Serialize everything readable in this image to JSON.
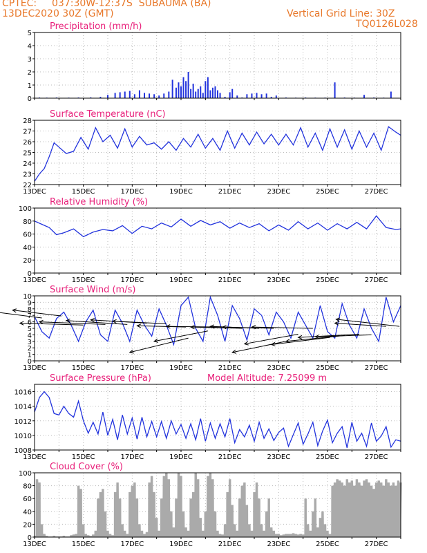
{
  "header": {
    "source": "CPTEC:",
    "location": "037:30W-12:37S  SUBAUMA (BA)",
    "run": "13DEC2020 30Z (GMT)",
    "grid_note": "Vertical Grid Line: 30Z",
    "code": "TQ0126L028"
  },
  "colors": {
    "header": "#e8782a",
    "title": "#e8207a",
    "line": "#2233dd",
    "cloud": "#aaaaaa",
    "grid": "#bbbbbb"
  },
  "x_ticks": [
    "13DEC",
    "15DEC",
    "17DEC",
    "19DEC",
    "21DEC",
    "23DEC",
    "25DEC",
    "27DEC"
  ],
  "chart_data": [
    {
      "id": "precip",
      "type": "bar",
      "title": "Precipitation (mm/h)",
      "xlim": [
        13.0,
        28.0
      ],
      "ylim": [
        0,
        5
      ],
      "yticks": [
        0,
        1,
        2,
        3,
        4,
        5
      ],
      "show_xlabels": false,
      "x": [
        13.2,
        13.5,
        13.9,
        14.4,
        14.8,
        15.3,
        15.7,
        16.0,
        16.3,
        16.5,
        16.7,
        16.9,
        17.1,
        17.3,
        17.5,
        17.7,
        17.9,
        18.1,
        18.3,
        18.5,
        18.65,
        18.8,
        18.9,
        19.0,
        19.1,
        19.2,
        19.3,
        19.4,
        19.5,
        19.6,
        19.7,
        19.8,
        19.9,
        20.0,
        20.1,
        20.2,
        20.3,
        20.4,
        20.5,
        20.6,
        20.8,
        21.0,
        21.1,
        21.3,
        21.5,
        21.7,
        21.9,
        22.1,
        22.3,
        22.5,
        22.7,
        22.9,
        23.3,
        23.7,
        24.1,
        24.5,
        24.9,
        25.3,
        25.7,
        26.1,
        26.5,
        26.9,
        27.3,
        27.6
      ],
      "values": [
        0.05,
        0.04,
        0.05,
        0.04,
        0.05,
        0.06,
        0.1,
        0.25,
        0.4,
        0.45,
        0.5,
        0.55,
        0.3,
        0.6,
        0.4,
        0.35,
        0.3,
        0.2,
        0.35,
        0.5,
        1.4,
        0.8,
        1.2,
        0.9,
        1.6,
        1.3,
        2.0,
        0.7,
        1.1,
        0.5,
        0.7,
        0.9,
        0.4,
        1.3,
        1.6,
        0.6,
        0.8,
        0.9,
        0.6,
        0.4,
        0.1,
        0.45,
        0.7,
        0.2,
        0.05,
        0.3,
        0.35,
        0.4,
        0.3,
        0.35,
        0.1,
        0.2,
        0.05,
        0.04,
        0.05,
        0.04,
        0.04,
        1.2,
        0.05,
        0.04,
        0.25,
        0.05,
        0.04,
        0.5
      ]
    },
    {
      "id": "temp",
      "type": "line",
      "title": "Surface Temperature (nC)",
      "xlim": [
        13.0,
        28.0
      ],
      "ylim": [
        22,
        28
      ],
      "yticks": [
        22,
        23,
        24,
        25,
        26,
        27,
        28
      ],
      "show_xlabels": true,
      "x": [
        13.0,
        13.2,
        13.4,
        13.6,
        13.8,
        14.0,
        14.3,
        14.6,
        14.9,
        15.2,
        15.5,
        15.8,
        16.1,
        16.4,
        16.7,
        17.0,
        17.3,
        17.6,
        17.9,
        18.2,
        18.5,
        18.8,
        19.1,
        19.4,
        19.7,
        20.0,
        20.3,
        20.6,
        20.9,
        21.2,
        21.5,
        21.8,
        22.1,
        22.4,
        22.7,
        23.0,
        23.3,
        23.6,
        23.9,
        24.2,
        24.5,
        24.8,
        25.1,
        25.4,
        25.7,
        26.0,
        26.3,
        26.6,
        26.9,
        27.2,
        27.5,
        27.8,
        28.0
      ],
      "y": [
        22.3,
        23.0,
        23.5,
        24.6,
        25.9,
        25.5,
        24.9,
        25.1,
        26.4,
        25.3,
        27.3,
        26.0,
        26.6,
        25.4,
        27.2,
        25.5,
        26.5,
        25.7,
        25.9,
        25.3,
        26.0,
        25.2,
        26.3,
        25.5,
        26.7,
        25.4,
        26.3,
        25.2,
        27.0,
        25.4,
        26.8,
        25.7,
        26.9,
        25.8,
        26.7,
        25.7,
        26.7,
        25.7,
        27.3,
        25.5,
        26.8,
        25.2,
        27.2,
        25.5,
        27.1,
        25.3,
        27.0,
        25.5,
        26.8,
        25.2,
        27.4,
        26.9,
        26.6
      ]
    },
    {
      "id": "rh",
      "type": "line",
      "title": "Relative Humidity (%)",
      "xlim": [
        13.0,
        28.0
      ],
      "ylim": [
        0,
        100
      ],
      "yticks": [
        0,
        20,
        40,
        60,
        80,
        100
      ],
      "show_xlabels": true,
      "x": [
        13.0,
        13.3,
        13.6,
        13.9,
        14.2,
        14.6,
        15.0,
        15.4,
        15.8,
        16.2,
        16.6,
        17.0,
        17.4,
        17.8,
        18.2,
        18.6,
        19.0,
        19.4,
        19.8,
        20.2,
        20.6,
        21.0,
        21.4,
        21.8,
        22.2,
        22.6,
        23.0,
        23.4,
        23.8,
        24.2,
        24.6,
        25.0,
        25.4,
        25.8,
        26.2,
        26.6,
        27.0,
        27.4,
        27.8,
        28.0
      ],
      "y": [
        80,
        75,
        70,
        59,
        62,
        68,
        56,
        63,
        67,
        65,
        73,
        61,
        72,
        68,
        77,
        71,
        83,
        72,
        81,
        74,
        79,
        69,
        77,
        70,
        76,
        65,
        74,
        66,
        79,
        68,
        77,
        66,
        76,
        68,
        78,
        68,
        88,
        70,
        67,
        68
      ]
    },
    {
      "id": "wind",
      "type": "line",
      "title": "Surface Wind (m/s)",
      "xlim": [
        13.0,
        28.0
      ],
      "ylim": [
        0,
        10
      ],
      "yticks": [
        0,
        1,
        2,
        3,
        4,
        5,
        6,
        7,
        8,
        9,
        10
      ],
      "show_xlabels": true,
      "x": [
        13.0,
        13.3,
        13.6,
        13.9,
        14.2,
        14.5,
        14.8,
        15.1,
        15.4,
        15.7,
        16.0,
        16.3,
        16.6,
        16.9,
        17.2,
        17.5,
        17.8,
        18.1,
        18.4,
        18.7,
        19.0,
        19.3,
        19.6,
        19.9,
        20.2,
        20.5,
        20.8,
        21.1,
        21.4,
        21.7,
        22.0,
        22.3,
        22.6,
        22.9,
        23.2,
        23.5,
        23.8,
        24.1,
        24.4,
        24.7,
        25.0,
        25.3,
        25.6,
        25.9,
        26.2,
        26.5,
        26.8,
        27.1,
        27.4,
        27.7,
        28.0
      ],
      "y": [
        6.8,
        4.5,
        3.5,
        6.5,
        7.5,
        5.5,
        3.0,
        6.0,
        7.8,
        4.0,
        3.0,
        7.8,
        5.8,
        3.0,
        7.8,
        5.5,
        3.8,
        8.0,
        5.5,
        2.5,
        8.5,
        9.8,
        5.0,
        3.0,
        9.8,
        7.0,
        3.0,
        8.5,
        6.5,
        3.2,
        8.0,
        7.0,
        4.0,
        7.5,
        6.0,
        3.5,
        7.5,
        5.5,
        3.5,
        8.5,
        4.5,
        3.5,
        8.8,
        5.5,
        3.5,
        8.0,
        5.0,
        3.0,
        9.8,
        6.0,
        8.5
      ],
      "arrows": [
        [
          13.3,
          6.6,
          -2.5,
          1.2
        ],
        [
          14.1,
          6.9,
          -2.0,
          0.9
        ],
        [
          15.0,
          5.5,
          -2.6,
          0.3
        ],
        [
          15.9,
          5.6,
          -2.7,
          0.4
        ],
        [
          16.8,
          5.6,
          -2.5,
          0.6
        ],
        [
          17.6,
          5.8,
          -2.3,
          0.5
        ],
        [
          18.4,
          5.7,
          -2.2,
          0.4
        ],
        [
          19.2,
          5.2,
          -2.0,
          0.2
        ],
        [
          19.3,
          3.5,
          -2.4,
          -2.2
        ],
        [
          20.1,
          4.6,
          -2.2,
          -1.6
        ],
        [
          20.7,
          5.2,
          -2.3,
          0.1
        ],
        [
          21.5,
          5.0,
          -2.1,
          0.2
        ],
        [
          22.2,
          5.0,
          -2.0,
          0.3
        ],
        [
          22.8,
          5.0,
          -2.1,
          0.2
        ],
        [
          23.3,
          3.0,
          -2.2,
          -1.7
        ],
        [
          23.8,
          4.1,
          -2.2,
          -1.5
        ],
        [
          24.4,
          5.0,
          -2.5,
          0.2
        ],
        [
          25.1,
          3.6,
          -2.4,
          -1.1
        ],
        [
          25.7,
          3.9,
          -2.4,
          -0.9
        ],
        [
          26.3,
          4.1,
          -2.5,
          -0.5
        ],
        [
          26.8,
          4.0,
          -2.3,
          -0.3
        ],
        [
          27.4,
          5.3,
          -2.1,
          0.5
        ],
        [
          27.95,
          5.3,
          -2.6,
          1.1
        ]
      ]
    },
    {
      "id": "pressure",
      "type": "line",
      "title": "Surface Pressure (hPa)",
      "subtitle": "Model Altitude: 7.25099 m",
      "xlim": [
        13.0,
        28.0
      ],
      "ylim": [
        1008,
        1017
      ],
      "yticks": [
        1008,
        1010,
        1012,
        1014,
        1016
      ],
      "show_xlabels": true,
      "x": [
        13.0,
        13.2,
        13.4,
        13.6,
        13.8,
        14.0,
        14.2,
        14.4,
        14.6,
        14.8,
        15.0,
        15.2,
        15.4,
        15.6,
        15.8,
        16.0,
        16.2,
        16.4,
        16.6,
        16.8,
        17.0,
        17.2,
        17.4,
        17.6,
        17.8,
        18.0,
        18.2,
        18.4,
        18.6,
        18.8,
        19.0,
        19.2,
        19.4,
        19.6,
        19.8,
        20.0,
        20.2,
        20.4,
        20.6,
        20.8,
        21.0,
        21.2,
        21.4,
        21.6,
        21.8,
        22.0,
        22.2,
        22.4,
        22.6,
        22.8,
        23.0,
        23.2,
        23.4,
        23.6,
        23.8,
        24.0,
        24.2,
        24.4,
        24.6,
        24.8,
        25.0,
        25.2,
        25.4,
        25.6,
        25.8,
        26.0,
        26.2,
        26.4,
        26.6,
        26.8,
        27.0,
        27.2,
        27.4,
        27.6,
        27.8,
        28.0
      ],
      "y": [
        1013.2,
        1015.2,
        1016.0,
        1015.2,
        1013.0,
        1012.8,
        1014.0,
        1013.0,
        1012.5,
        1014.7,
        1012.0,
        1010.3,
        1011.8,
        1010.2,
        1013.2,
        1010.0,
        1012.2,
        1009.4,
        1012.8,
        1010.2,
        1012.4,
        1009.5,
        1012.5,
        1009.8,
        1011.9,
        1009.8,
        1011.9,
        1009.6,
        1012.0,
        1010.2,
        1011.5,
        1009.6,
        1011.6,
        1009.4,
        1012.3,
        1009.2,
        1011.7,
        1009.6,
        1011.6,
        1009.8,
        1012.3,
        1009.0,
        1010.8,
        1009.8,
        1011.4,
        1009.2,
        1011.8,
        1009.6,
        1010.9,
        1009.3,
        1010.4,
        1011.0,
        1008.5,
        1010.1,
        1011.7,
        1008.8,
        1010.2,
        1011.8,
        1008.6,
        1010.6,
        1012.1,
        1009.0,
        1010.3,
        1011.2,
        1008.3,
        1011.8,
        1009.2,
        1010.3,
        1008.5,
        1011.7,
        1009.2,
        1009.9,
        1011.2,
        1008.4,
        1009.4,
        1009.2
      ]
    },
    {
      "id": "cloud",
      "type": "area",
      "title": "Cloud Cover (%)",
      "xlim": [
        13.0,
        28.0
      ],
      "ylim": [
        0,
        100
      ],
      "yticks": [
        0,
        20,
        40,
        60,
        80,
        100
      ],
      "show_xlabels": true,
      "x": [
        13.0,
        13.1,
        13.2,
        13.3,
        13.4,
        13.5,
        13.6,
        13.7,
        13.8,
        13.9,
        14.0,
        14.1,
        14.2,
        14.3,
        14.4,
        14.5,
        14.6,
        14.7,
        14.8,
        14.9,
        15.0,
        15.1,
        15.2,
        15.3,
        15.4,
        15.5,
        15.6,
        15.7,
        15.8,
        15.9,
        16.0,
        16.1,
        16.2,
        16.3,
        16.4,
        16.5,
        16.6,
        16.7,
        16.8,
        16.9,
        17.0,
        17.1,
        17.2,
        17.3,
        17.4,
        17.5,
        17.6,
        17.7,
        17.8,
        17.9,
        18.0,
        18.1,
        18.2,
        18.3,
        18.4,
        18.5,
        18.6,
        18.7,
        18.8,
        18.9,
        19.0,
        19.1,
        19.2,
        19.3,
        19.4,
        19.5,
        19.6,
        19.7,
        19.8,
        19.9,
        20.0,
        20.1,
        20.2,
        20.3,
        20.4,
        20.5,
        20.6,
        20.7,
        20.8,
        20.9,
        21.0,
        21.1,
        21.2,
        21.3,
        21.4,
        21.5,
        21.6,
        21.7,
        21.8,
        21.9,
        22.0,
        22.1,
        22.2,
        22.3,
        22.4,
        22.5,
        22.6,
        22.7,
        22.8,
        22.9,
        23.0,
        23.1,
        23.2,
        23.3,
        23.4,
        23.5,
        23.6,
        23.7,
        23.8,
        23.9,
        24.0,
        24.1,
        24.2,
        24.3,
        24.4,
        24.5,
        24.6,
        24.7,
        24.8,
        24.9,
        25.0,
        25.1,
        25.2,
        25.3,
        25.4,
        25.5,
        25.6,
        25.7,
        25.8,
        25.9,
        26.0,
        26.1,
        26.2,
        26.3,
        26.4,
        26.5,
        26.6,
        26.7,
        26.8,
        26.9,
        27.0,
        27.1,
        27.2,
        27.3,
        27.4,
        27.5,
        27.6,
        27.7,
        27.8,
        27.9,
        28.0
      ],
      "y": [
        2,
        90,
        85,
        20,
        5,
        2,
        1,
        1,
        2,
        1,
        1,
        1,
        2,
        1,
        1,
        3,
        4,
        5,
        80,
        75,
        20,
        5,
        3,
        2,
        4,
        10,
        60,
        70,
        75,
        40,
        10,
        5,
        3,
        70,
        85,
        60,
        20,
        10,
        5,
        70,
        80,
        85,
        60,
        20,
        10,
        5,
        8,
        85,
        95,
        70,
        30,
        10,
        60,
        95,
        100,
        90,
        40,
        15,
        60,
        100,
        95,
        40,
        15,
        10,
        60,
        70,
        100,
        90,
        30,
        10,
        40,
        95,
        100,
        90,
        40,
        10,
        5,
        4,
        20,
        70,
        90,
        50,
        20,
        10,
        60,
        80,
        85,
        50,
        20,
        10,
        70,
        85,
        60,
        20,
        10,
        40,
        60,
        15,
        10,
        5,
        5,
        3,
        4,
        5,
        5,
        5,
        6,
        5,
        4,
        5,
        4,
        60,
        20,
        10,
        40,
        60,
        15,
        30,
        40,
        20,
        10,
        5,
        80,
        85,
        90,
        88,
        85,
        80,
        90,
        85,
        88,
        80,
        90,
        85,
        80,
        88,
        90,
        85,
        80,
        75,
        85,
        88,
        85,
        80,
        90,
        85,
        80,
        85,
        80,
        88,
        85
      ]
    }
  ]
}
